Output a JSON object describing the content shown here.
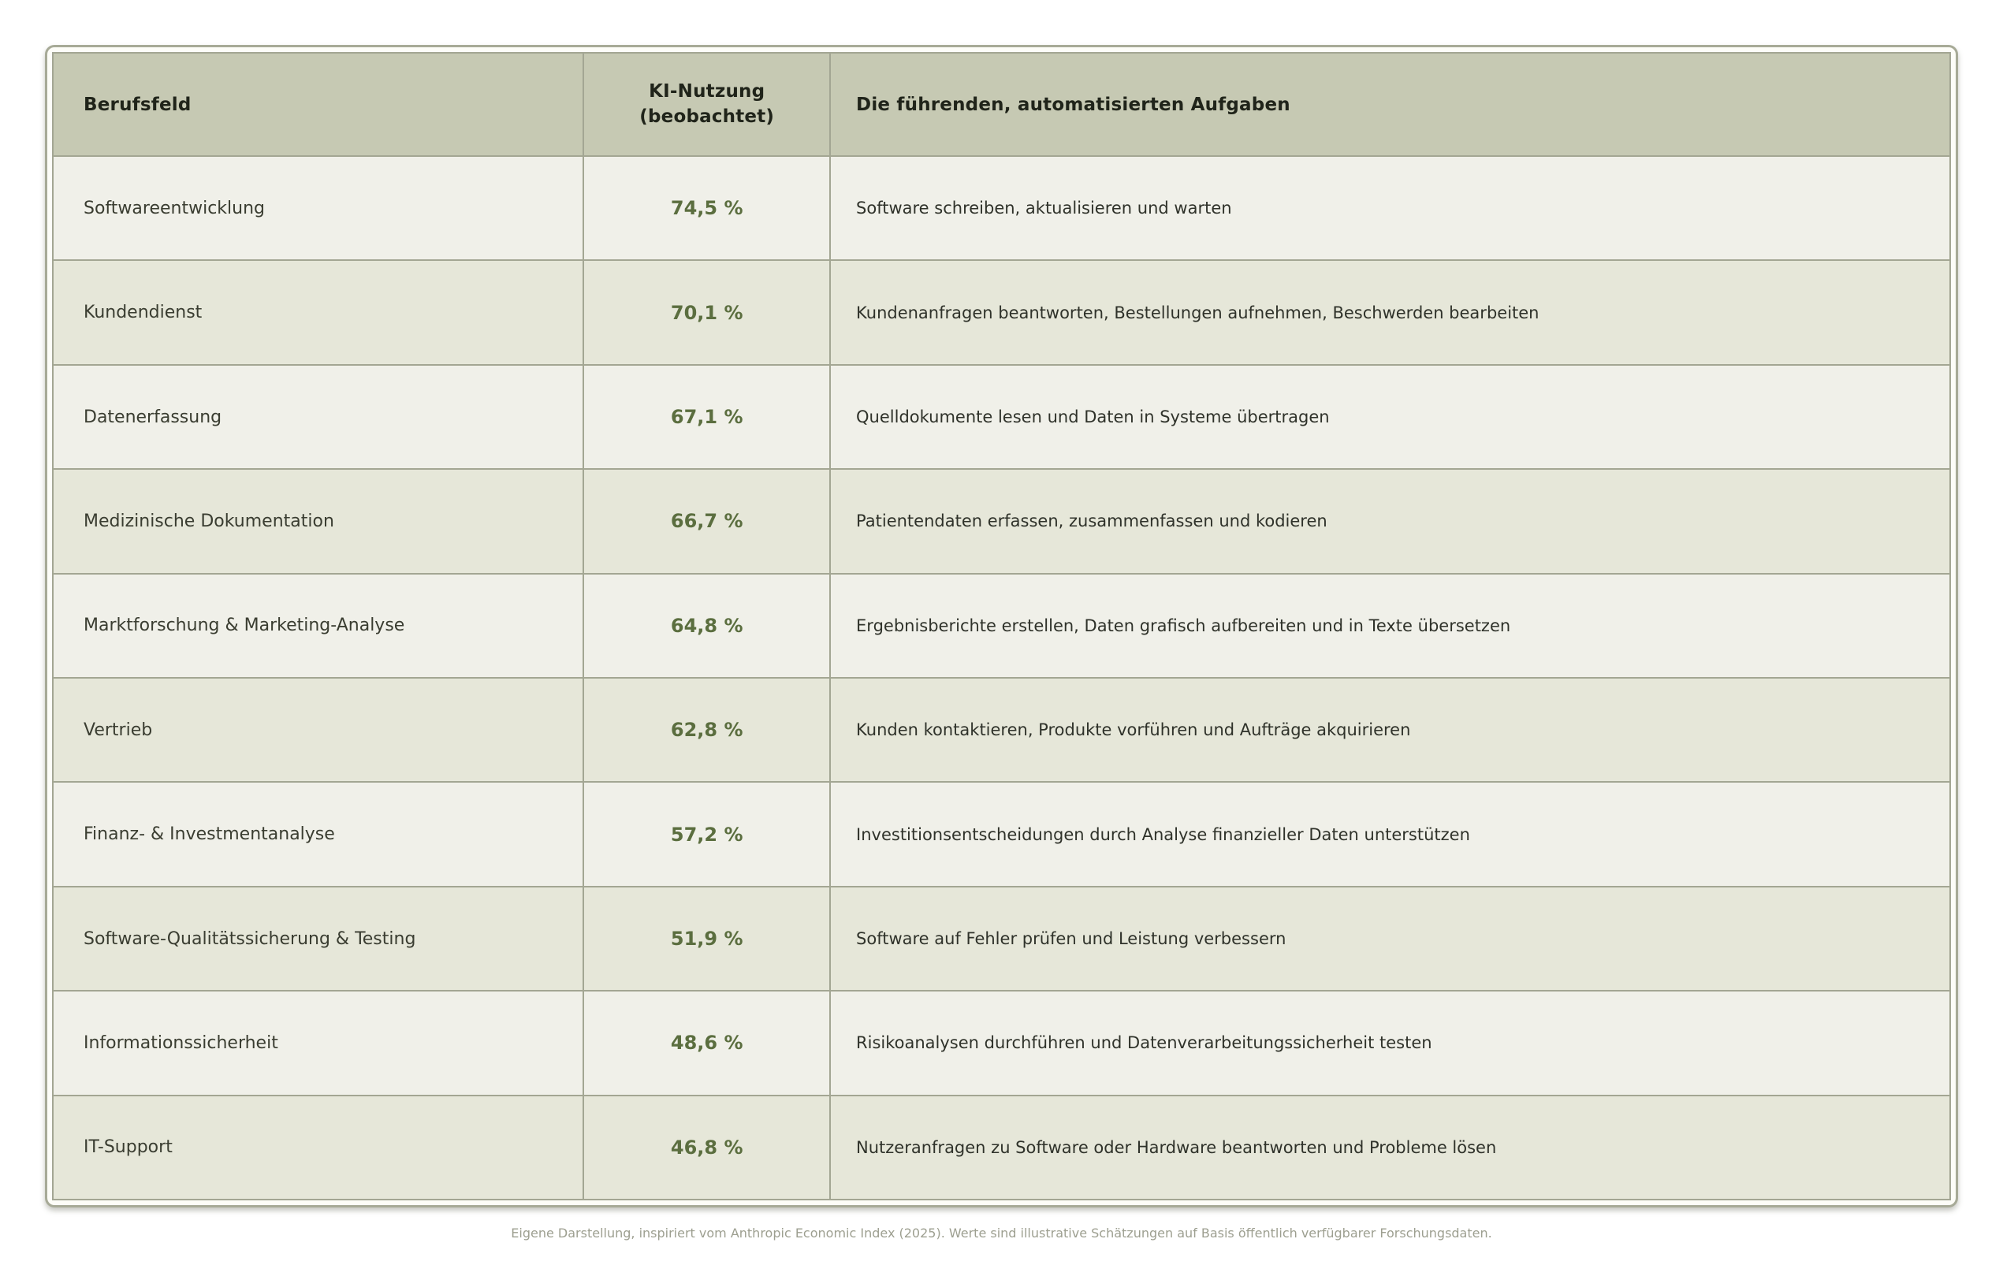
{
  "table": {
    "columns": [
      {
        "label": "Berufsfeld"
      },
      {
        "label": "KI-Nutzung\n(beobachtet)"
      },
      {
        "label": "Die führenden, automatisierten Aufgaben"
      }
    ],
    "rows": [
      {
        "field": "Softwareentwicklung",
        "usage": "74,5 %",
        "tasks": "Software schreiben, aktualisieren und warten"
      },
      {
        "field": "Kundendienst",
        "usage": "70,1 %",
        "tasks": "Kundenanfragen beantworten, Bestellungen aufnehmen, Beschwerden bearbeiten"
      },
      {
        "field": "Datenerfassung",
        "usage": "67,1 %",
        "tasks": "Quelldokumente lesen und Daten in Systeme übertragen"
      },
      {
        "field": "Medizinische Dokumentation",
        "usage": "66,7 %",
        "tasks": "Patientendaten erfassen, zusammenfassen und kodieren"
      },
      {
        "field": "Marktforschung & Marketing-Analyse",
        "usage": "64,8 %",
        "tasks": "Ergebnisberichte erstellen, Daten grafisch aufbereiten und in Texte übersetzen"
      },
      {
        "field": "Vertrieb",
        "usage": "62,8 %",
        "tasks": "Kunden kontaktieren, Produkte vorführen und Aufträge akquirieren"
      },
      {
        "field": "Finanz- & Investmentanalyse",
        "usage": "57,2 %",
        "tasks": "Investitionsentscheidungen durch Analyse finanzieller Daten unterstützen"
      },
      {
        "field": "Software-Qualitätssicherung & Testing",
        "usage": "51,9 %",
        "tasks": "Software auf Fehler prüfen und Leistung verbessern"
      },
      {
        "field": "Informationssicherheit",
        "usage": "48,6 %",
        "tasks": "Risikoanalysen durchführen und Datenverarbeitungssicherheit testen"
      },
      {
        "field": "IT-Support",
        "usage": "46,8 %",
        "tasks": "Nutzeranfragen zu Software oder Hardware beantworten und Probleme lösen"
      }
    ]
  },
  "footer": {
    "caption": "Eigene Darstellung, inspiriert vom Anthropic Economic Index (2025). Werte sind illustrative Schätzungen auf Basis öffentlich verfügbarer Forschungsdaten."
  },
  "colors": {
    "header_bg": "#c6c9b3",
    "row_odd_bg": "#f0f0e9",
    "row_even_bg": "#e6e7d9",
    "border": "#a3a693",
    "usage_green": "#5b6e3f",
    "footer_gray": "#9d9f90"
  },
  "chart_data": {
    "type": "table",
    "title": "",
    "columns": [
      "Berufsfeld",
      "KI-Nutzung (beobachtet)",
      "Die führenden, automatisierten Aufgaben"
    ],
    "categories": [
      "Softwareentwicklung",
      "Kundendienst",
      "Datenerfassung",
      "Medizinische Dokumentation",
      "Marktforschung & Marketing-Analyse",
      "Vertrieb",
      "Finanz- & Investmentanalyse",
      "Software-Qualitätssicherung & Testing",
      "Informationssicherheit",
      "IT-Support"
    ],
    "values": [
      74.5,
      70.1,
      67.1,
      66.7,
      64.8,
      62.8,
      57.2,
      51.9,
      48.6,
      46.8
    ],
    "value_unit": "%",
    "annotations": [
      "Software schreiben, aktualisieren und warten",
      "Kundenanfragen beantworten, Bestellungen aufnehmen, Beschwerden bearbeiten",
      "Quelldokumente lesen und Daten in Systeme übertragen",
      "Patientendaten erfassen, zusammenfassen und kodieren",
      "Ergebnisberichte erstellen, Daten grafisch aufbereiten und in Texte übersetzen",
      "Kunden kontaktieren, Produkte vorführen und Aufträge akquirieren",
      "Investitionsentscheidungen durch Analyse finanzieller Daten unterstützen",
      "Software auf Fehler prüfen und Leistung verbessern",
      "Risikoanalysen durchführen und Datenverarbeitungssicherheit testen",
      "Nutzeranfragen zu Software oder Hardware beantworten und Probleme lösen"
    ],
    "caption": "Eigene Darstellung, inspiriert vom Anthropic Economic Index (2025). Werte sind illustrative Schätzungen auf Basis öffentlich verfügbarer Forschungsdaten."
  }
}
